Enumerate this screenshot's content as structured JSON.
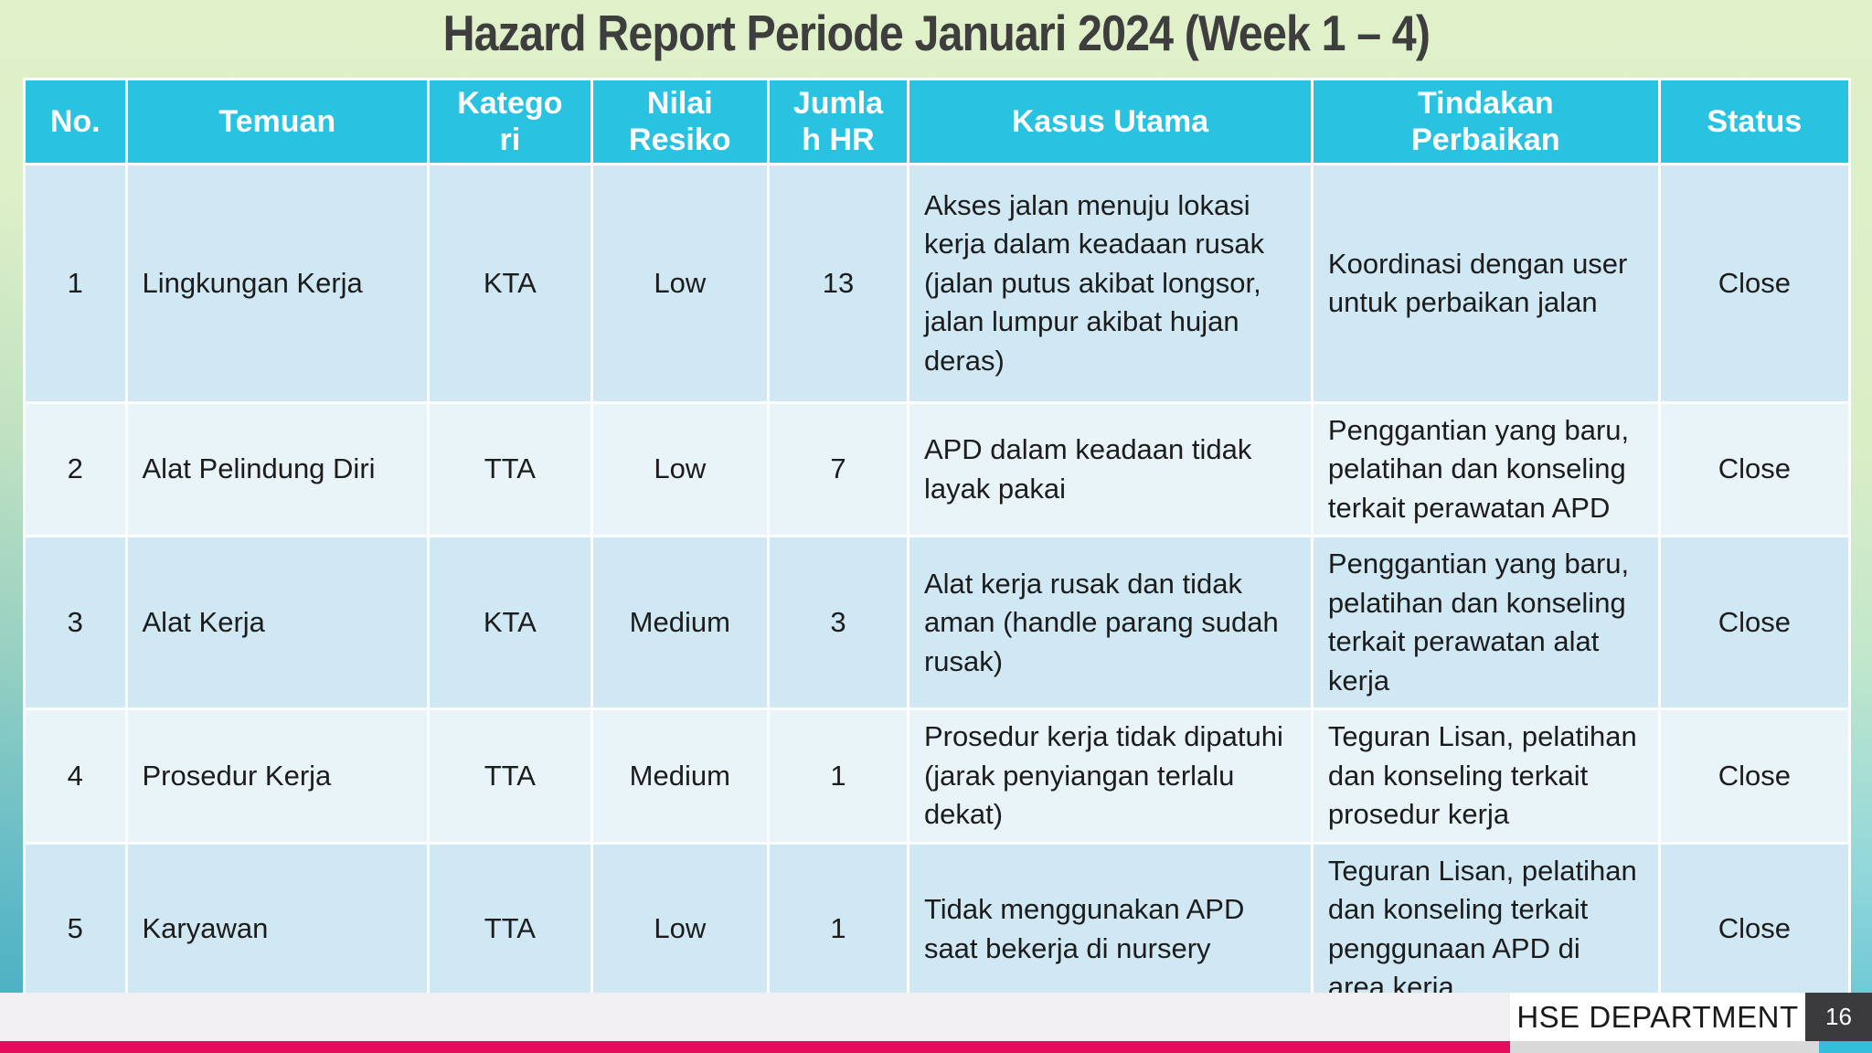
{
  "slide": {
    "title": "Hazard Report Periode Januari 2024 (Week 1 – 4)",
    "footer": {
      "department": "HSE DEPARTMENT",
      "page_number": "16"
    }
  },
  "table": {
    "columns": [
      {
        "label": "No."
      },
      {
        "label": "Temuan"
      },
      {
        "label": "Kategori"
      },
      {
        "label": "Nilai Resiko"
      },
      {
        "label": "Jumlah HR"
      },
      {
        "label": "Kasus Utama"
      },
      {
        "label": "Tindakan Perbaikan"
      },
      {
        "label": "Status"
      }
    ],
    "rows": [
      {
        "no": "1",
        "temuan": "Lingkungan Kerja",
        "kategori": "KTA",
        "nilai_resiko": "Low",
        "jumlah_hr": "13",
        "kasus_utama": "Akses jalan menuju lokasi kerja dalam keadaan rusak (jalan putus akibat longsor, jalan lumpur akibat hujan deras)",
        "tindakan_perbaikan": "Koordinasi dengan user untuk perbaikan jalan",
        "status": "Close"
      },
      {
        "no": "2",
        "temuan": "Alat Pelindung Diri",
        "kategori": "TTA",
        "nilai_resiko": "Low",
        "jumlah_hr": "7",
        "kasus_utama": "APD dalam keadaan tidak layak pakai",
        "tindakan_perbaikan": "Penggantian yang baru, pelatihan dan konseling terkait perawatan APD",
        "status": "Close"
      },
      {
        "no": "3",
        "temuan": "Alat Kerja",
        "kategori": "KTA",
        "nilai_resiko": "Medium",
        "jumlah_hr": "3",
        "kasus_utama": "Alat kerja rusak dan tidak aman (handle parang sudah rusak)",
        "tindakan_perbaikan": "Penggantian yang baru, pelatihan dan konseling terkait perawatan alat kerja",
        "status": "Close"
      },
      {
        "no": "4",
        "temuan": "Prosedur Kerja",
        "kategori": "TTA",
        "nilai_resiko": "Medium",
        "jumlah_hr": "1",
        "kasus_utama": "Prosedur kerja tidak dipatuhi (jarak penyiangan terlalu dekat)",
        "tindakan_perbaikan": "Teguran Lisan, pelatihan dan konseling terkait prosedur kerja",
        "status": "Close"
      },
      {
        "no": "5",
        "temuan": "Karyawan",
        "kategori": "TTA",
        "nilai_resiko": "Low",
        "jumlah_hr": "1",
        "kasus_utama": "Tidak menggunakan APD saat bekerja di nursery",
        "tindakan_perbaikan": "Teguran Lisan, pelatihan dan konseling terkait penggunaan APD di area kerja",
        "status": "Close"
      }
    ]
  },
  "colors": {
    "header_bg": "#29c2e1",
    "row_odd_bg": "#cfe8f3",
    "row_even_bg": "#e9f4f9",
    "accent_bar": "#e30d5c",
    "page_box_bg": "#3b3b3d",
    "bottom_gray": "#d9d9d9",
    "bottom_cyan": "#35bedb",
    "title_text": "#3e3e3e"
  }
}
